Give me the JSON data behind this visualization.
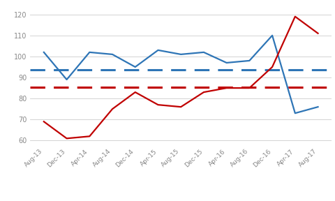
{
  "x_labels": [
    "Aug-13",
    "Dec-13",
    "Apr-14",
    "Aug-14",
    "Dec-14",
    "Apr-15",
    "Aug-15",
    "Dec-15",
    "Apr-16",
    "Aug-16",
    "Dec-16",
    "Apr-17",
    "Aug-17"
  ],
  "blue_values": [
    102,
    89,
    102,
    101,
    95,
    103,
    101,
    102,
    97,
    98,
    110,
    73,
    76
  ],
  "red_values": [
    69,
    61,
    62,
    75,
    83,
    77,
    76,
    83,
    85,
    85,
    95,
    119,
    111
  ],
  "blue_hline": 93.5,
  "red_hline": 85.5,
  "ylim": [
    58,
    124
  ],
  "yticks": [
    60,
    70,
    80,
    90,
    100,
    110,
    120
  ],
  "blue_color": "#2E75B6",
  "red_color": "#C00000",
  "grid_color": "#CCCCCC",
  "background_color": "#FFFFFF",
  "tick_label_color": "#888888",
  "line_width": 1.6,
  "dash_linewidth": 2.2,
  "tick_fontsize": 6.5
}
